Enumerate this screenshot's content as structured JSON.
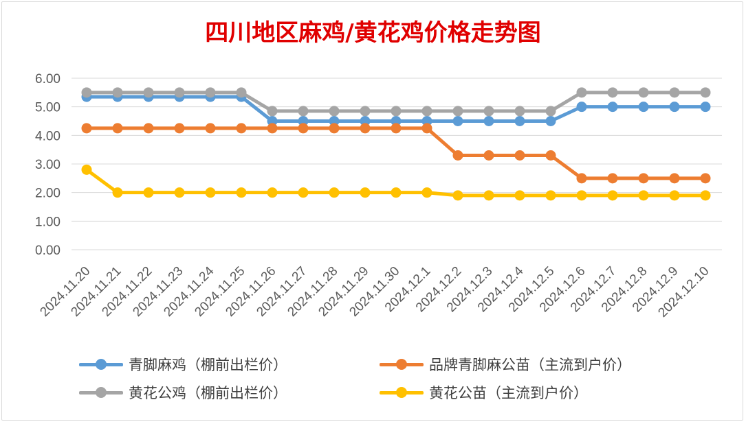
{
  "chart_data": {
    "type": "line",
    "title": "四川地区麻鸡/黄花鸡价格走势图",
    "categories": [
      "2024.11.20",
      "2024.11.21",
      "2024.11.22",
      "2024.11.23",
      "2024.11.24",
      "2024.11.25",
      "2024.11.26",
      "2024.11.27",
      "2024.11.28",
      "2024.11.29",
      "2024.11.30",
      "2024.12.1",
      "2024.12.2",
      "2024.12.3",
      "2024.12.4",
      "2024.12.5",
      "2024.12.6",
      "2024.12.7",
      "2024.12.8",
      "2024.12.9",
      "2024.12.10"
    ],
    "yticks": [
      "6.00",
      "5.00",
      "4.00",
      "3.00",
      "2.00",
      "1.00",
      "0.00"
    ],
    "ylim": [
      0,
      6
    ],
    "grid": true,
    "legend_position": "bottom",
    "series": [
      {
        "name": "青脚麻鸡（棚前出栏价）",
        "color": "#5b9bd5",
        "values": [
          5.35,
          5.35,
          5.35,
          5.35,
          5.35,
          5.35,
          4.5,
          4.5,
          4.5,
          4.5,
          4.5,
          4.5,
          4.5,
          4.5,
          4.5,
          4.5,
          5.0,
          5.0,
          5.0,
          5.0,
          5.0
        ]
      },
      {
        "name": "品牌青脚麻公苗（主流到户价）",
        "color": "#ed7d31",
        "values": [
          4.25,
          4.25,
          4.25,
          4.25,
          4.25,
          4.25,
          4.25,
          4.25,
          4.25,
          4.25,
          4.25,
          4.25,
          3.3,
          3.3,
          3.3,
          3.3,
          2.5,
          2.5,
          2.5,
          2.5,
          2.5
        ]
      },
      {
        "name": "黄花公鸡（棚前出栏价）",
        "color": "#a5a5a5",
        "values": [
          5.5,
          5.5,
          5.5,
          5.5,
          5.5,
          5.5,
          4.85,
          4.85,
          4.85,
          4.85,
          4.85,
          4.85,
          4.85,
          4.85,
          4.85,
          4.85,
          5.5,
          5.5,
          5.5,
          5.5,
          5.5
        ]
      },
      {
        "name": "黄花公苗（主流到户价）",
        "color": "#ffc000",
        "values": [
          2.8,
          2.0,
          2.0,
          2.0,
          2.0,
          2.0,
          2.0,
          2.0,
          2.0,
          2.0,
          2.0,
          2.0,
          1.9,
          1.9,
          1.9,
          1.9,
          1.9,
          1.9,
          1.9,
          1.9,
          1.9
        ]
      }
    ]
  }
}
